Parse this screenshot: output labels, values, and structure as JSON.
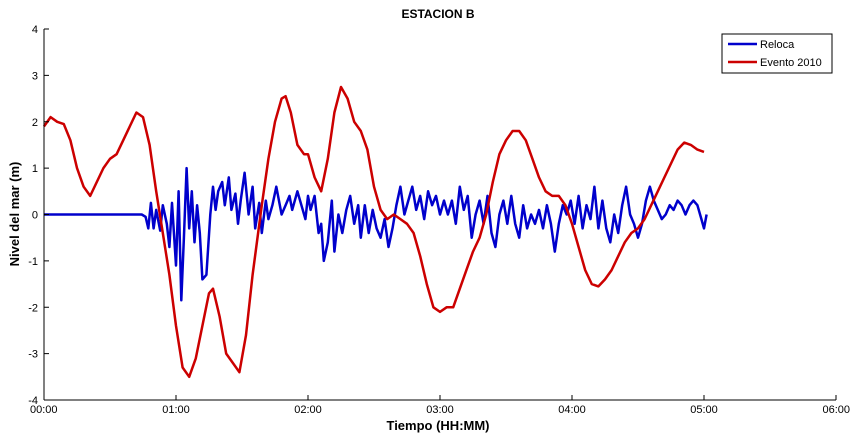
{
  "chart_data": {
    "type": "line",
    "title": "ESTACION B",
    "xlabel": "Tiempo (HH:MM)",
    "ylabel": "Nivel del mar (m)",
    "x_unit": "hours",
    "xlim": [
      0,
      6
    ],
    "ylim": [
      -4,
      4
    ],
    "xticks": [
      0,
      1,
      2,
      3,
      4,
      5,
      6
    ],
    "xtick_labels": [
      "00:00",
      "01:00",
      "02:00",
      "03:00",
      "04:00",
      "05:00",
      "06:00"
    ],
    "yticks": [
      -4,
      -3,
      -2,
      -1,
      0,
      1,
      2,
      3,
      4
    ],
    "ytick_labels": [
      "-4",
      "-3",
      "-2",
      "-1",
      "0",
      "1",
      "2",
      "3",
      "4"
    ],
    "grid": false,
    "legend_position": "top-right",
    "series": [
      {
        "name": "Reloca",
        "color": "#0000cc",
        "points": [
          [
            0.0,
            0.0
          ],
          [
            0.4,
            0.0
          ],
          [
            0.7,
            0.0
          ],
          [
            0.74,
            0.0
          ],
          [
            0.77,
            -0.05
          ],
          [
            0.79,
            -0.3
          ],
          [
            0.81,
            0.25
          ],
          [
            0.83,
            -0.3
          ],
          [
            0.85,
            0.1
          ],
          [
            0.88,
            -0.35
          ],
          [
            0.9,
            0.2
          ],
          [
            0.93,
            -0.2
          ],
          [
            0.95,
            -0.7
          ],
          [
            0.97,
            0.25
          ],
          [
            1.0,
            -1.1
          ],
          [
            1.02,
            0.5
          ],
          [
            1.04,
            -1.85
          ],
          [
            1.06,
            -0.5
          ],
          [
            1.08,
            1.0
          ],
          [
            1.1,
            -0.3
          ],
          [
            1.12,
            0.5
          ],
          [
            1.14,
            -0.6
          ],
          [
            1.16,
            0.2
          ],
          [
            1.18,
            -0.4
          ],
          [
            1.2,
            -1.4
          ],
          [
            1.23,
            -1.3
          ],
          [
            1.26,
            0.0
          ],
          [
            1.28,
            0.6
          ],
          [
            1.3,
            0.1
          ],
          [
            1.32,
            0.5
          ],
          [
            1.35,
            0.7
          ],
          [
            1.37,
            0.2
          ],
          [
            1.4,
            0.8
          ],
          [
            1.42,
            0.1
          ],
          [
            1.45,
            0.45
          ],
          [
            1.47,
            -0.2
          ],
          [
            1.49,
            0.3
          ],
          [
            1.52,
            0.9
          ],
          [
            1.55,
            0.0
          ],
          [
            1.58,
            0.6
          ],
          [
            1.6,
            -0.3
          ],
          [
            1.63,
            0.25
          ],
          [
            1.65,
            -0.4
          ],
          [
            1.68,
            0.3
          ],
          [
            1.7,
            -0.1
          ],
          [
            1.73,
            0.2
          ],
          [
            1.76,
            0.6
          ],
          [
            1.8,
            0.0
          ],
          [
            1.83,
            0.2
          ],
          [
            1.86,
            0.4
          ],
          [
            1.88,
            0.1
          ],
          [
            1.92,
            0.5
          ],
          [
            1.95,
            0.2
          ],
          [
            1.98,
            -0.1
          ],
          [
            2.0,
            0.4
          ],
          [
            2.02,
            0.1
          ],
          [
            2.05,
            0.4
          ],
          [
            2.08,
            -0.4
          ],
          [
            2.1,
            -0.2
          ],
          [
            2.12,
            -1.0
          ],
          [
            2.15,
            -0.6
          ],
          [
            2.18,
            0.3
          ],
          [
            2.2,
            -0.8
          ],
          [
            2.23,
            0.0
          ],
          [
            2.26,
            -0.4
          ],
          [
            2.29,
            0.1
          ],
          [
            2.32,
            0.4
          ],
          [
            2.35,
            -0.2
          ],
          [
            2.38,
            0.2
          ],
          [
            2.4,
            -0.5
          ],
          [
            2.43,
            0.2
          ],
          [
            2.46,
            -0.4
          ],
          [
            2.49,
            0.1
          ],
          [
            2.52,
            -0.3
          ],
          [
            2.55,
            -0.5
          ],
          [
            2.58,
            -0.1
          ],
          [
            2.61,
            -0.7
          ],
          [
            2.64,
            -0.3
          ],
          [
            2.67,
            0.2
          ],
          [
            2.7,
            0.6
          ],
          [
            2.73,
            0.0
          ],
          [
            2.76,
            0.3
          ],
          [
            2.79,
            0.6
          ],
          [
            2.82,
            0.1
          ],
          [
            2.85,
            0.4
          ],
          [
            2.88,
            -0.1
          ],
          [
            2.91,
            0.5
          ],
          [
            2.94,
            0.2
          ],
          [
            2.97,
            0.4
          ],
          [
            3.0,
            0.0
          ],
          [
            3.03,
            0.3
          ],
          [
            3.06,
            0.0
          ],
          [
            3.09,
            0.3
          ],
          [
            3.12,
            -0.2
          ],
          [
            3.15,
            0.6
          ],
          [
            3.18,
            0.1
          ],
          [
            3.21,
            0.4
          ],
          [
            3.24,
            -0.5
          ],
          [
            3.27,
            0.0
          ],
          [
            3.3,
            0.3
          ],
          [
            3.33,
            -0.2
          ],
          [
            3.36,
            0.4
          ],
          [
            3.39,
            -0.4
          ],
          [
            3.42,
            -0.7
          ],
          [
            3.45,
            0.0
          ],
          [
            3.48,
            0.3
          ],
          [
            3.51,
            -0.2
          ],
          [
            3.54,
            0.4
          ],
          [
            3.57,
            -0.2
          ],
          [
            3.6,
            -0.5
          ],
          [
            3.63,
            0.2
          ],
          [
            3.66,
            -0.3
          ],
          [
            3.69,
            0.0
          ],
          [
            3.72,
            -0.2
          ],
          [
            3.75,
            0.1
          ],
          [
            3.78,
            -0.3
          ],
          [
            3.81,
            0.2
          ],
          [
            3.84,
            -0.2
          ],
          [
            3.87,
            -0.8
          ],
          [
            3.9,
            -0.2
          ],
          [
            3.93,
            0.2
          ],
          [
            3.96,
            0.0
          ],
          [
            3.99,
            0.3
          ],
          [
            4.02,
            -0.2
          ],
          [
            4.05,
            0.4
          ],
          [
            4.08,
            -0.3
          ],
          [
            4.11,
            0.2
          ],
          [
            4.14,
            -0.1
          ],
          [
            4.17,
            0.6
          ],
          [
            4.2,
            -0.3
          ],
          [
            4.23,
            0.3
          ],
          [
            4.26,
            -0.3
          ],
          [
            4.29,
            -0.6
          ],
          [
            4.32,
            0.0
          ],
          [
            4.35,
            -0.4
          ],
          [
            4.38,
            0.2
          ],
          [
            4.41,
            0.6
          ],
          [
            4.44,
            0.0
          ],
          [
            4.47,
            -0.2
          ],
          [
            4.5,
            -0.5
          ],
          [
            4.53,
            -0.2
          ],
          [
            4.56,
            0.3
          ],
          [
            4.59,
            0.6
          ],
          [
            4.62,
            0.3
          ],
          [
            4.65,
            0.1
          ],
          [
            4.68,
            -0.1
          ],
          [
            4.71,
            0.0
          ],
          [
            4.74,
            0.2
          ],
          [
            4.77,
            0.1
          ],
          [
            4.8,
            0.3
          ],
          [
            4.83,
            0.2
          ],
          [
            4.86,
            0.0
          ],
          [
            4.89,
            0.2
          ],
          [
            4.92,
            0.3
          ],
          [
            4.95,
            0.2
          ],
          [
            4.98,
            -0.1
          ],
          [
            5.0,
            -0.3
          ],
          [
            5.02,
            0.0
          ]
        ]
      },
      {
        "name": "Evento 2010",
        "color": "#cc0000",
        "points": [
          [
            0.0,
            1.9
          ],
          [
            0.05,
            2.1
          ],
          [
            0.1,
            2.0
          ],
          [
            0.15,
            1.95
          ],
          [
            0.2,
            1.6
          ],
          [
            0.25,
            1.0
          ],
          [
            0.3,
            0.6
          ],
          [
            0.35,
            0.4
          ],
          [
            0.4,
            0.7
          ],
          [
            0.45,
            1.0
          ],
          [
            0.5,
            1.2
          ],
          [
            0.55,
            1.3
          ],
          [
            0.6,
            1.6
          ],
          [
            0.65,
            1.9
          ],
          [
            0.7,
            2.2
          ],
          [
            0.75,
            2.1
          ],
          [
            0.8,
            1.5
          ],
          [
            0.85,
            0.5
          ],
          [
            0.9,
            -0.4
          ],
          [
            0.95,
            -1.3
          ],
          [
            1.0,
            -2.4
          ],
          [
            1.05,
            -3.3
          ],
          [
            1.1,
            -3.5
          ],
          [
            1.15,
            -3.1
          ],
          [
            1.2,
            -2.4
          ],
          [
            1.25,
            -1.7
          ],
          [
            1.28,
            -1.6
          ],
          [
            1.33,
            -2.2
          ],
          [
            1.38,
            -3.0
          ],
          [
            1.43,
            -3.2
          ],
          [
            1.48,
            -3.4
          ],
          [
            1.53,
            -2.6
          ],
          [
            1.58,
            -1.3
          ],
          [
            1.65,
            0.2
          ],
          [
            1.7,
            1.2
          ],
          [
            1.75,
            2.0
          ],
          [
            1.8,
            2.5
          ],
          [
            1.83,
            2.55
          ],
          [
            1.87,
            2.2
          ],
          [
            1.92,
            1.5
          ],
          [
            1.97,
            1.3
          ],
          [
            2.0,
            1.3
          ],
          [
            2.05,
            0.8
          ],
          [
            2.1,
            0.5
          ],
          [
            2.15,
            1.2
          ],
          [
            2.2,
            2.2
          ],
          [
            2.25,
            2.75
          ],
          [
            2.3,
            2.5
          ],
          [
            2.35,
            2.0
          ],
          [
            2.4,
            1.8
          ],
          [
            2.45,
            1.4
          ],
          [
            2.5,
            0.6
          ],
          [
            2.55,
            0.1
          ],
          [
            2.6,
            -0.1
          ],
          [
            2.65,
            0.0
          ],
          [
            2.7,
            -0.1
          ],
          [
            2.75,
            -0.2
          ],
          [
            2.8,
            -0.4
          ],
          [
            2.85,
            -0.9
          ],
          [
            2.9,
            -1.5
          ],
          [
            2.95,
            -2.0
          ],
          [
            3.0,
            -2.1
          ],
          [
            3.05,
            -2.0
          ],
          [
            3.1,
            -2.0
          ],
          [
            3.15,
            -1.6
          ],
          [
            3.2,
            -1.2
          ],
          [
            3.25,
            -0.8
          ],
          [
            3.3,
            -0.5
          ],
          [
            3.35,
            0.0
          ],
          [
            3.4,
            0.7
          ],
          [
            3.45,
            1.3
          ],
          [
            3.5,
            1.6
          ],
          [
            3.55,
            1.8
          ],
          [
            3.6,
            1.8
          ],
          [
            3.65,
            1.6
          ],
          [
            3.7,
            1.2
          ],
          [
            3.75,
            0.8
          ],
          [
            3.8,
            0.5
          ],
          [
            3.85,
            0.4
          ],
          [
            3.9,
            0.4
          ],
          [
            3.95,
            0.2
          ],
          [
            4.0,
            -0.2
          ],
          [
            4.05,
            -0.7
          ],
          [
            4.1,
            -1.2
          ],
          [
            4.15,
            -1.5
          ],
          [
            4.2,
            -1.55
          ],
          [
            4.25,
            -1.4
          ],
          [
            4.3,
            -1.2
          ],
          [
            4.35,
            -0.9
          ],
          [
            4.4,
            -0.6
          ],
          [
            4.45,
            -0.4
          ],
          [
            4.5,
            -0.3
          ],
          [
            4.55,
            -0.1
          ],
          [
            4.6,
            0.2
          ],
          [
            4.65,
            0.5
          ],
          [
            4.7,
            0.8
          ],
          [
            4.75,
            1.1
          ],
          [
            4.8,
            1.4
          ],
          [
            4.85,
            1.55
          ],
          [
            4.9,
            1.5
          ],
          [
            4.95,
            1.4
          ],
          [
            5.0,
            1.35
          ]
        ]
      }
    ]
  }
}
